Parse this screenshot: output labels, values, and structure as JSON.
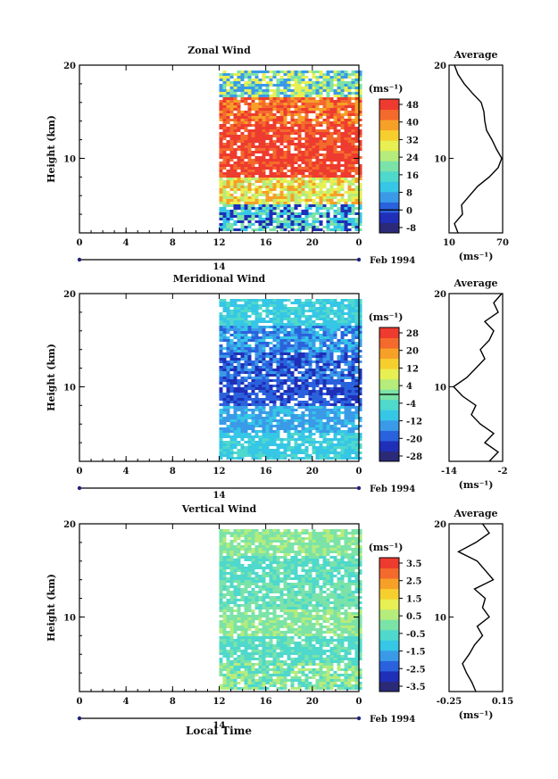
{
  "figure": {
    "xlabel": "Local Time",
    "date_label": "Feb 1994",
    "day_label": "14",
    "ylabel": "Height (km)",
    "units_label": "(ms⁻¹)",
    "average_title": "Average"
  },
  "palette": [
    "#2a2a78",
    "#1f2fb8",
    "#2a62dd",
    "#3a9ae8",
    "#36c6e6",
    "#4fd8cc",
    "#7be3a8",
    "#b5ec7c",
    "#e8ef52",
    "#f6cf2e",
    "#f7a028",
    "#f46a2c",
    "#ee3b2f"
  ],
  "chart_data": [
    {
      "type": "heatmap",
      "title": "Zonal Wind",
      "ylabel": "Height (km)",
      "xlabel": "",
      "x_ticks": [
        "0",
        "4",
        "8",
        "12",
        "16",
        "20",
        "0"
      ],
      "y_ticks": [
        "20",
        "10"
      ],
      "ylim": [
        2,
        20
      ],
      "data_start_tick": 3,
      "colorbar": {
        "label": "(ms⁻¹)",
        "ticks": [
          "48",
          "40",
          "32",
          "24",
          "16",
          "8",
          "0",
          "-8"
        ],
        "zero_line_index": 6
      },
      "profile": {
        "title": "Average",
        "x_ticks": [
          "10",
          "70"
        ],
        "xlim": [
          10,
          70
        ],
        "xlabel": "(ms⁻¹)",
        "heights": [
          2,
          3,
          4,
          5,
          6,
          7,
          8,
          9,
          10,
          11,
          12,
          13,
          14,
          15,
          16,
          17,
          18,
          19,
          20
        ],
        "values": [
          20,
          16,
          25,
          24,
          33,
          42,
          55,
          65,
          70,
          63,
          58,
          52,
          50,
          49,
          46,
          36,
          27,
          20,
          16
        ]
      },
      "band_colors": [
        [
          "#3a9ae8",
          "#7be3a8",
          "#e8ef52"
        ],
        [
          "#f7a028",
          "#f46a2c",
          "#ee3b2f"
        ],
        [
          "#ee3b2f",
          "#f46a2c",
          "#ee3b2f"
        ],
        [
          "#ee3b2f",
          "#ee3b2f",
          "#f46a2c"
        ],
        [
          "#b5ec7c",
          "#e8ef52",
          "#f7a028"
        ],
        [
          "#1f2fb8",
          "#36c6e6",
          "#7be3a8"
        ]
      ]
    },
    {
      "type": "heatmap",
      "title": "Meridional Wind",
      "ylabel": "Height (km)",
      "xlabel": "",
      "x_ticks": [
        "0",
        "4",
        "8",
        "12",
        "16",
        "20",
        "0"
      ],
      "y_ticks": [
        "20",
        "10"
      ],
      "ylim": [
        2,
        20
      ],
      "data_start_tick": 3,
      "colorbar": {
        "label": "(ms⁻¹)",
        "ticks": [
          "28",
          "20",
          "12",
          "4",
          "-4",
          "-12",
          "-20",
          "-28"
        ],
        "zero_line_index": 3.5
      },
      "profile": {
        "title": "Average",
        "x_ticks": [
          "-14",
          "-2"
        ],
        "xlim": [
          -14,
          -2
        ],
        "xlabel": "(ms⁻¹)",
        "heights": [
          2,
          3,
          4,
          5,
          6,
          7,
          8,
          9,
          10,
          11,
          12,
          13,
          14,
          15,
          16,
          17,
          18,
          19,
          20
        ],
        "values": [
          -5,
          -3,
          -6,
          -4,
          -7,
          -9,
          -8,
          -11,
          -13,
          -10,
          -8,
          -6,
          -7,
          -5,
          -4,
          -6,
          -3,
          -4,
          -2
        ]
      },
      "band_colors": [
        [
          "#36c6e6",
          "#4fd8cc",
          "#36c6e6"
        ],
        [
          "#2a62dd",
          "#3a9ae8",
          "#36c6e6"
        ],
        [
          "#1f2fb8",
          "#2a62dd",
          "#3a9ae8"
        ],
        [
          "#1f2fb8",
          "#2a62dd",
          "#2a62dd"
        ],
        [
          "#3a9ae8",
          "#36c6e6",
          "#3a9ae8"
        ],
        [
          "#36c6e6",
          "#4fd8cc",
          "#36c6e6"
        ]
      ]
    },
    {
      "type": "heatmap",
      "title": "Vertical Wind",
      "ylabel": "Height (km)",
      "xlabel": "Local Time",
      "x_ticks": [
        "0",
        "4",
        "8",
        "12",
        "16",
        "20",
        "0"
      ],
      "y_ticks": [
        "20",
        "10"
      ],
      "ylim": [
        2,
        20
      ],
      "data_start_tick": 3,
      "colorbar": {
        "label": "(ms⁻¹)",
        "ticks": [
          "3.5",
          "2.5",
          "1.5",
          "0.5",
          "-0.5",
          "-1.5",
          "-2.5",
          "-3.5"
        ],
        "zero_line_index": null
      },
      "profile": {
        "title": "Average",
        "x_ticks": [
          "-0.25",
          "0.15"
        ],
        "xlim": [
          -0.25,
          0.15
        ],
        "xlabel": "(ms⁻¹)",
        "heights": [
          2,
          3,
          4,
          5,
          6,
          7,
          8,
          9,
          10,
          11,
          12,
          13,
          14,
          15,
          16,
          17,
          18,
          19,
          20
        ],
        "values": [
          -0.05,
          -0.08,
          -0.12,
          -0.15,
          -0.1,
          -0.06,
          0.0,
          -0.04,
          0.05,
          0.0,
          0.02,
          -0.06,
          0.08,
          0.02,
          -0.04,
          -0.18,
          -0.05,
          0.05,
          0.0
        ]
      },
      "band_colors": [
        [
          "#7be3a8",
          "#b5ec7c",
          "#7be3a8"
        ],
        [
          "#4fd8cc",
          "#7be3a8",
          "#4fd8cc"
        ],
        [
          "#7be3a8",
          "#4fd8cc",
          "#7be3a8"
        ],
        [
          "#7be3a8",
          "#b5ec7c",
          "#7be3a8"
        ],
        [
          "#4fd8cc",
          "#7be3a8",
          "#4fd8cc"
        ],
        [
          "#7be3a8",
          "#4fd8cc",
          "#b5ec7c"
        ]
      ]
    }
  ]
}
